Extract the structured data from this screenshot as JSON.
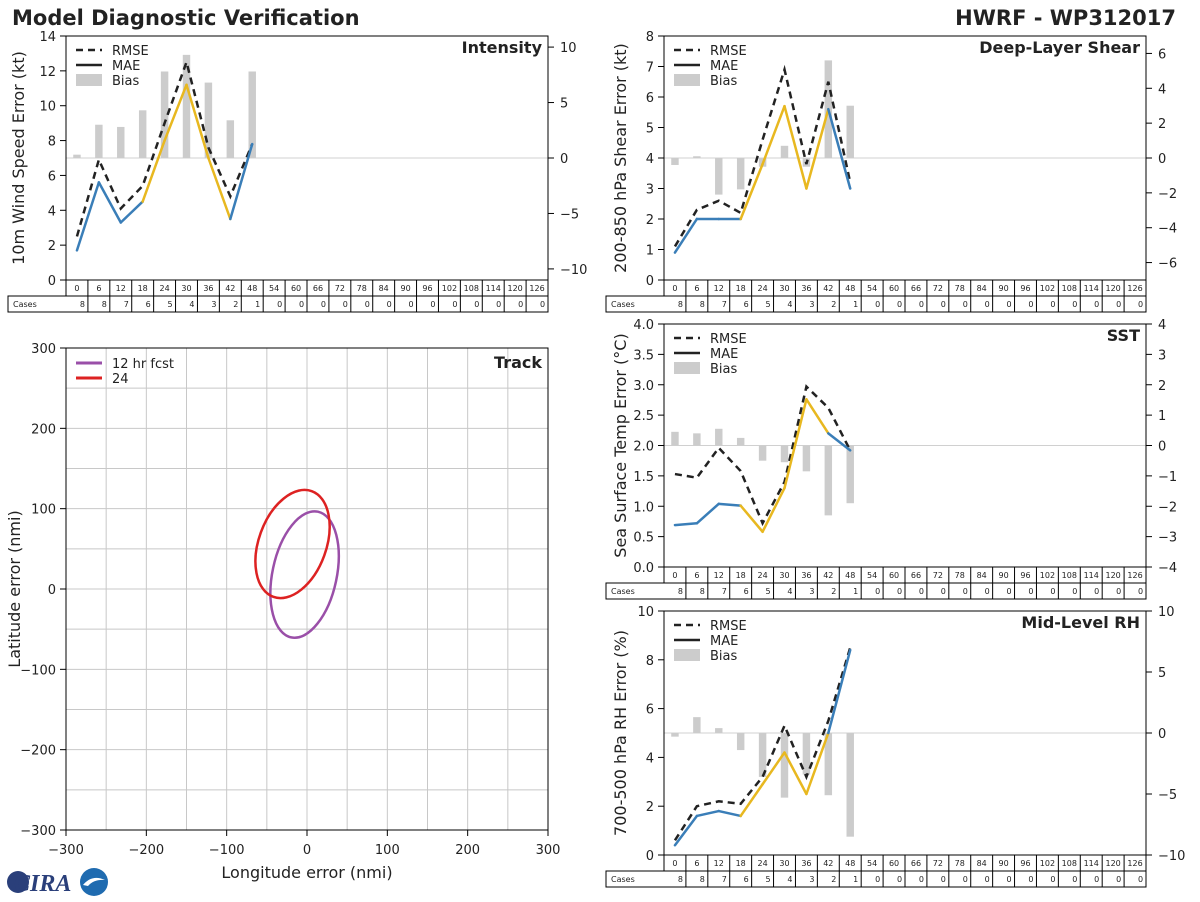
{
  "header": {
    "title": "Model Diagnostic Verification",
    "model_id": "HWRF - WP312017"
  },
  "logo": {
    "text": "CIRA"
  },
  "colors": {
    "early": "#3a7eb8",
    "late": "#e8b820",
    "rmse": "#222222",
    "bias": "#cccccc",
    "track_12": "#9a4fa8",
    "track_24": "#dd2222"
  },
  "legend_labels": {
    "rmse": "RMSE",
    "mae": "MAE",
    "bias": "Bias"
  },
  "lead_hours": [
    0,
    6,
    12,
    18,
    24,
    30,
    36,
    42,
    48,
    54,
    60,
    66,
    72,
    78,
    84,
    90,
    96,
    102,
    108,
    114,
    120,
    126
  ],
  "cases_label": "Cases",
  "cases": [
    8,
    8,
    7,
    6,
    5,
    4,
    3,
    2,
    1,
    0,
    0,
    0,
    0,
    0,
    0,
    0,
    0,
    0,
    0,
    0,
    0,
    0
  ],
  "chart_data": [
    {
      "id": "intensity",
      "type": "line",
      "title": "Intensity",
      "ylabel": "10m Wind Speed Error (kt)",
      "ylim": [
        0,
        14
      ],
      "yticks": [
        0,
        2,
        4,
        6,
        8,
        10,
        12,
        14
      ],
      "bias_lim": [
        -11,
        11
      ],
      "bias_ticks": [
        -10,
        -5,
        0,
        5,
        10
      ],
      "x": [
        0,
        6,
        12,
        18,
        24,
        30,
        36,
        42,
        48
      ],
      "mae": [
        1.7,
        5.6,
        3.3,
        4.5,
        8.0,
        11.2,
        7.0,
        3.5,
        7.8
      ],
      "rmse": [
        2.5,
        6.9,
        4.1,
        5.4,
        9.0,
        12.5,
        7.6,
        4.8,
        7.8
      ],
      "bias": [
        0.3,
        3.0,
        2.8,
        4.3,
        7.8,
        9.3,
        6.8,
        3.4,
        7.8
      ]
    },
    {
      "id": "shear",
      "type": "line",
      "title": "Deep-Layer Shear",
      "ylabel": "200-850 hPa Shear Error (kt)",
      "ylim": [
        0,
        8
      ],
      "yticks": [
        0,
        1,
        2,
        3,
        4,
        5,
        6,
        7,
        8
      ],
      "bias_lim": [
        -7,
        7
      ],
      "bias_ticks": [
        -6,
        -4,
        -2,
        0,
        2,
        4,
        6
      ],
      "x": [
        0,
        6,
        12,
        18,
        24,
        30,
        36,
        42,
        48
      ],
      "mae": [
        0.9,
        2.0,
        2.0,
        2.0,
        3.8,
        5.7,
        3.0,
        5.6,
        3.0
      ],
      "rmse": [
        1.1,
        2.3,
        2.6,
        2.2,
        4.6,
        6.9,
        3.8,
        6.5,
        3.2
      ],
      "bias": [
        -0.4,
        0.1,
        -2.1,
        -1.8,
        -0.5,
        0.7,
        -0.5,
        5.6,
        3.0
      ]
    },
    {
      "id": "sst",
      "type": "line",
      "title": "SST",
      "ylabel": "Sea Surface Temp Error (°C)",
      "ylim": [
        0,
        4
      ],
      "yticks": [
        "0.0",
        "0.5",
        "1.0",
        "1.5",
        "2.0",
        "2.5",
        "3.0",
        "3.5",
        "4.0"
      ],
      "bias_lim": [
        -4,
        4
      ],
      "bias_ticks": [
        -4,
        -3,
        -2,
        -1,
        0,
        1,
        2,
        3,
        4
      ],
      "x": [
        0,
        6,
        12,
        18,
        24,
        30,
        36,
        42,
        48
      ],
      "mae": [
        0.69,
        0.72,
        1.04,
        1.01,
        0.58,
        1.3,
        2.76,
        2.2,
        1.92
      ],
      "rmse": [
        1.53,
        1.47,
        1.96,
        1.58,
        0.72,
        1.4,
        2.97,
        2.62,
        1.92
      ],
      "bias": [
        0.45,
        0.4,
        0.55,
        0.25,
        -0.5,
        -0.55,
        -0.85,
        -2.3,
        -1.9
      ]
    },
    {
      "id": "rh",
      "type": "line",
      "title": "Mid-Level RH",
      "ylabel": "700-500 hPa RH Error (%)",
      "ylim": [
        0,
        10
      ],
      "yticks": [
        0,
        2,
        4,
        6,
        8,
        10
      ],
      "bias_lim": [
        -10,
        10
      ],
      "bias_ticks": [
        -10,
        -5,
        0,
        5,
        10
      ],
      "x": [
        0,
        6,
        12,
        18,
        24,
        30,
        36,
        42,
        48
      ],
      "mae": [
        0.4,
        1.6,
        1.8,
        1.6,
        2.9,
        4.2,
        2.5,
        5.0,
        8.4
      ],
      "rmse": [
        0.6,
        2.0,
        2.2,
        2.1,
        3.2,
        5.3,
        3.2,
        5.5,
        8.5
      ],
      "bias": [
        -0.3,
        1.3,
        0.4,
        -1.4,
        -3.6,
        -5.3,
        -3.4,
        -5.1,
        -8.5
      ]
    },
    {
      "id": "track",
      "type": "ellipse",
      "title": "Track",
      "xlabel": "Longitude error (nmi)",
      "ylabel": "Latitude error (nmi)",
      "xlim": [
        -300,
        300
      ],
      "ylim": [
        -300,
        300
      ],
      "xticks": [
        -300,
        -200,
        -100,
        0,
        100,
        200,
        300
      ],
      "yticks": [
        -300,
        -200,
        -100,
        0,
        100,
        200,
        300
      ],
      "ellipses": [
        {
          "label": "12 hr fcst",
          "cx": -3,
          "cy": 18,
          "rx": 40,
          "ry": 80,
          "rot_deg": 12,
          "color": "#9a4fa8"
        },
        {
          "label": "24",
          "cx": -18,
          "cy": 56,
          "rx": 42,
          "ry": 70,
          "rot_deg": 20,
          "color": "#dd2222"
        }
      ]
    }
  ]
}
